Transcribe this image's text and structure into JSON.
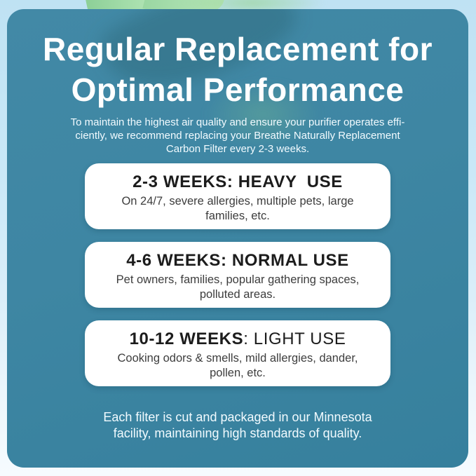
{
  "infographic": {
    "title": "Regular Replacement for\nOptimal Performance",
    "intro": "To maintain the highest air quality and ensure your purifier operates effi-\nciently, we recommend replacing your Breathe Naturally Replacement\nCarbon Filter every 2-3 weeks.",
    "footer": "Each filter is cut and packaged in our Minnesota\nfacility, maintaining high standards of quality."
  },
  "cards": [
    {
      "title_strong": "2-3 WEEKS: HEAVY  USE",
      "title_light": "",
      "body": "On 24/7, severe allergies, multiple pets, large\nfamilies, etc."
    },
    {
      "title_strong": "4-6 WEEKS: NORMAL USE",
      "title_light": "",
      "body": "Pet owners, families, popular gathering spaces,\npolluted areas."
    },
    {
      "title_strong": "10-12 WEEKS",
      "title_light": ": LIGHT USE",
      "body": "Cooking odors & smells, mild allergies, dander,\npollen, etc."
    }
  ],
  "decorations": {
    "top_left": "mint-leaf"
  },
  "colors": {
    "panel_teal": "#3e86a3",
    "background_top": "#bfe2f3",
    "background_bottom": "#f6fbfe",
    "card_background": "#ffffff",
    "card_title_text": "#1c1c1c",
    "card_body_text": "#3d3d3d",
    "heading_text": "#ffffff",
    "leaf_green": "#9bd8a3"
  }
}
